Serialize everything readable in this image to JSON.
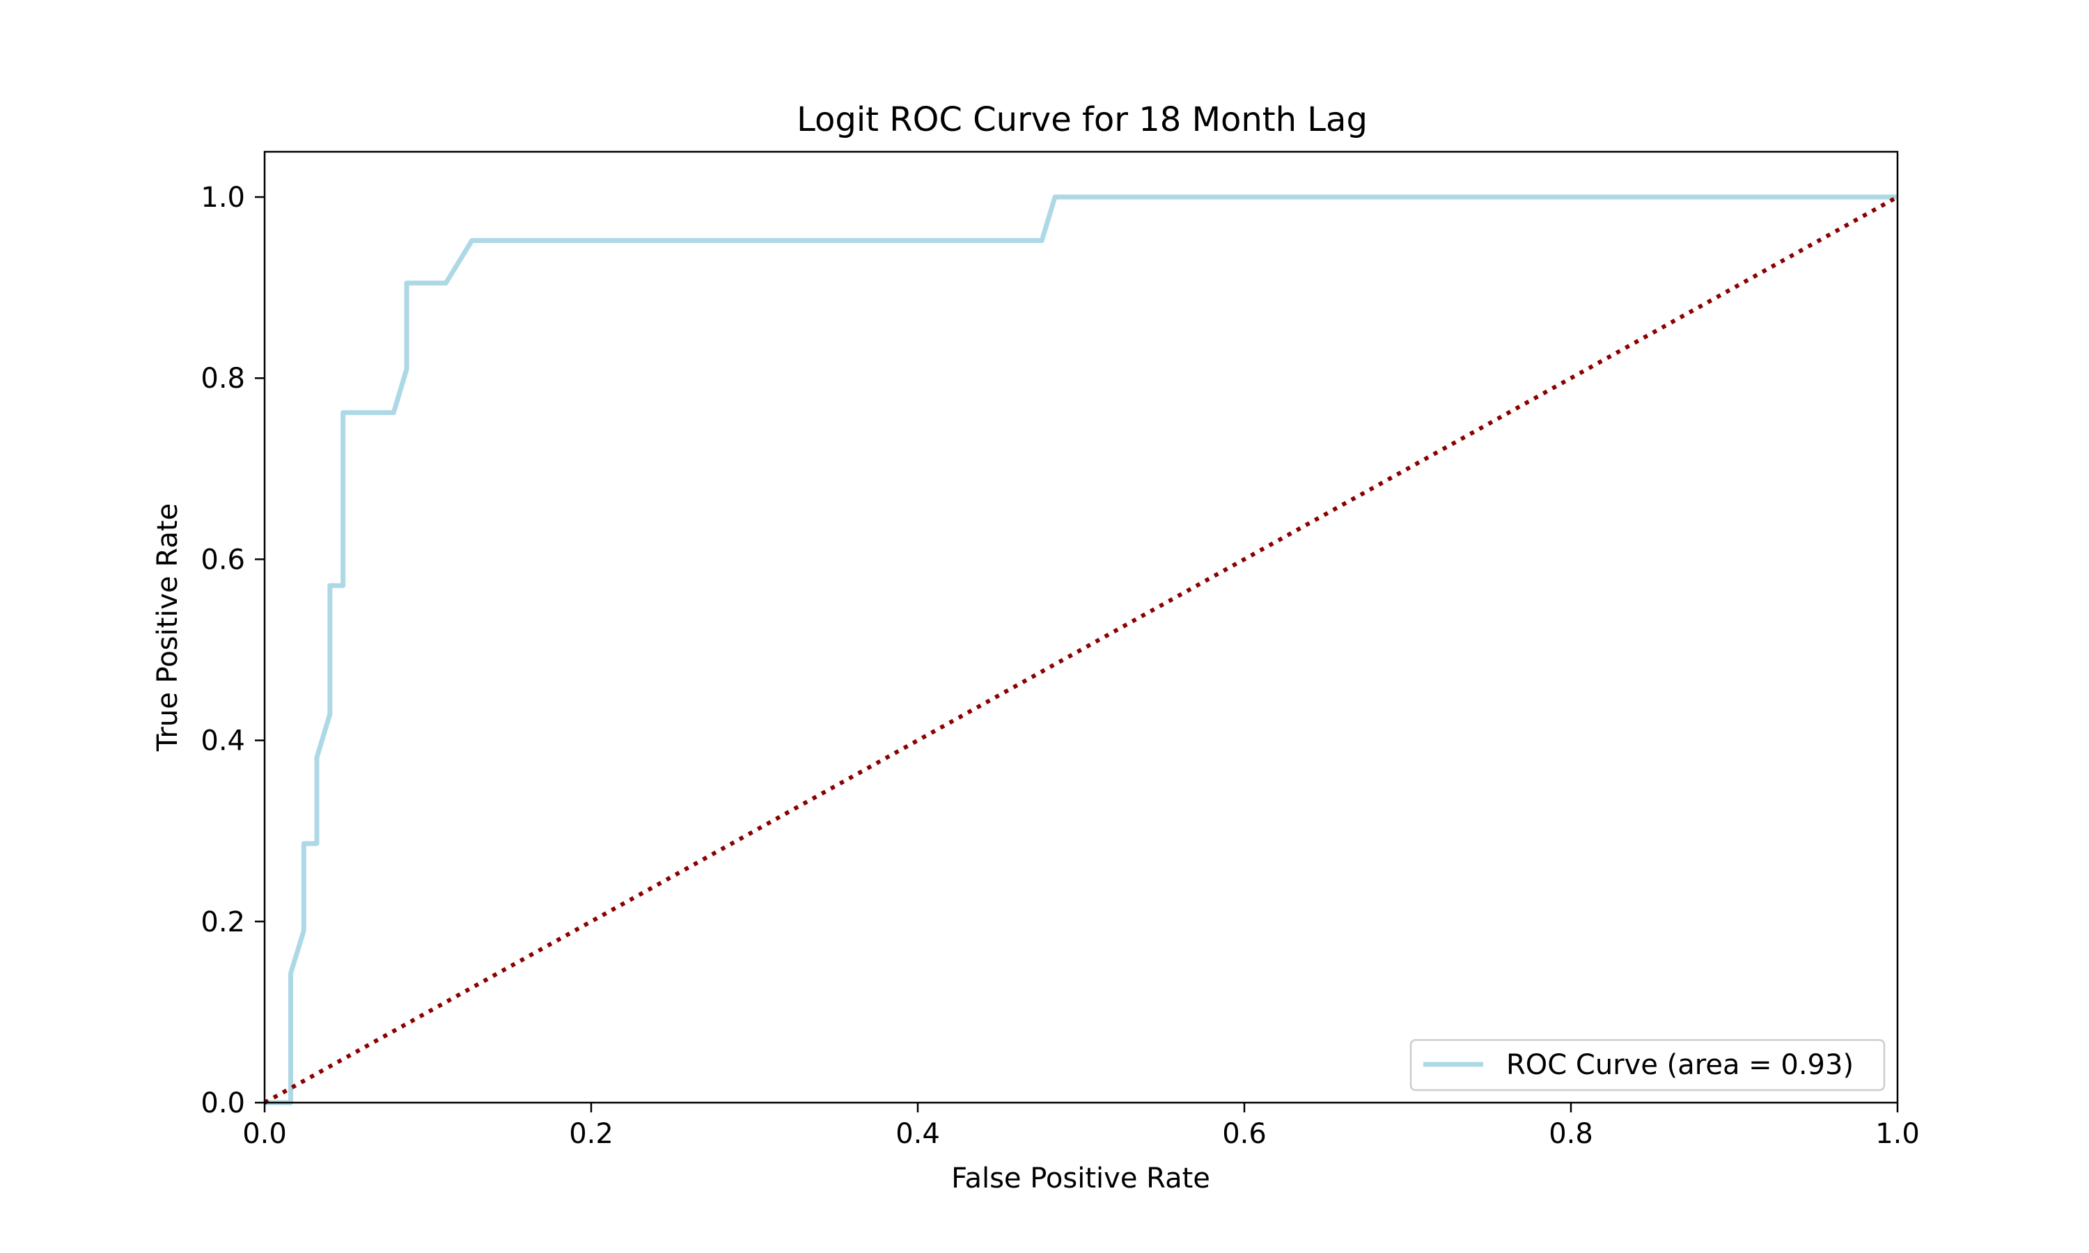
{
  "chart_data": {
    "type": "line",
    "title": "Logit ROC Curve for 18 Month Lag",
    "xlabel": "False Positive Rate",
    "ylabel": "True Positive Rate",
    "xlim": [
      0.0,
      1.0
    ],
    "ylim": [
      0.0,
      1.05
    ],
    "x_ticks": [
      "0.0",
      "0.2",
      "0.4",
      "0.6",
      "0.8",
      "1.0"
    ],
    "y_ticks": [
      "0.0",
      "0.2",
      "0.4",
      "0.6",
      "0.8",
      "1.0"
    ],
    "grid": false,
    "legend_position": "lower-right",
    "series": [
      {
        "name": "ROC Curve (area = 0.93)",
        "color": "#add8e6",
        "style": "solid",
        "x": [
          0.0,
          0.016,
          0.016,
          0.016,
          0.024,
          0.024,
          0.032,
          0.032,
          0.04,
          0.04,
          0.048,
          0.048,
          0.079,
          0.087,
          0.087,
          0.111,
          0.127,
          0.476,
          0.484,
          1.0
        ],
        "y": [
          0.0,
          0.0,
          0.0,
          0.143,
          0.19,
          0.286,
          0.286,
          0.381,
          0.429,
          0.571,
          0.571,
          0.762,
          0.762,
          0.81,
          0.905,
          0.905,
          0.952,
          0.952,
          1.0,
          1.0
        ]
      },
      {
        "name": "",
        "color": "#8b0000",
        "style": "dotted",
        "x": [
          0.0,
          1.0
        ],
        "y": [
          0.0,
          1.0
        ]
      }
    ]
  }
}
